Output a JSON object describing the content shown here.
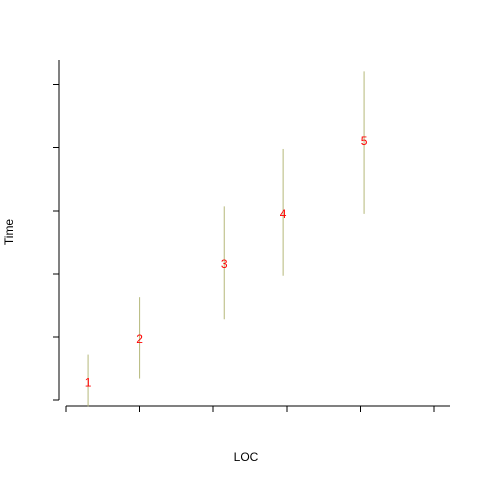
{
  "chart_data": {
    "type": "scatter",
    "title": "",
    "xlabel": "LOC",
    "ylabel": "Time",
    "xlim": [
      0,
      5
    ],
    "ylim": [
      0,
      5.2
    ],
    "x_ticks": [
      0,
      1,
      2,
      3,
      4,
      5
    ],
    "y_ticks": [
      0,
      1,
      2,
      3,
      4,
      5
    ],
    "tick_labels_shown": false,
    "grid": false,
    "legend": "none",
    "colors": {
      "label": "#ff0000",
      "range": "#b5b87a",
      "axis": "#000000"
    },
    "points": [
      {
        "label": "1",
        "x": 0.3,
        "y": 0.28,
        "ymin": -0.1,
        "ymax": 0.72
      },
      {
        "label": "2",
        "x": 1.0,
        "y": 0.97,
        "ymin": 0.34,
        "ymax": 1.63
      },
      {
        "label": "3",
        "x": 2.15,
        "y": 2.16,
        "ymin": 1.28,
        "ymax": 3.07
      },
      {
        "label": "4",
        "x": 2.95,
        "y": 2.95,
        "ymin": 1.97,
        "ymax": 3.98
      },
      {
        "label": "5",
        "x": 4.05,
        "y": 4.11,
        "ymin": 2.95,
        "ymax": 5.21
      }
    ]
  }
}
